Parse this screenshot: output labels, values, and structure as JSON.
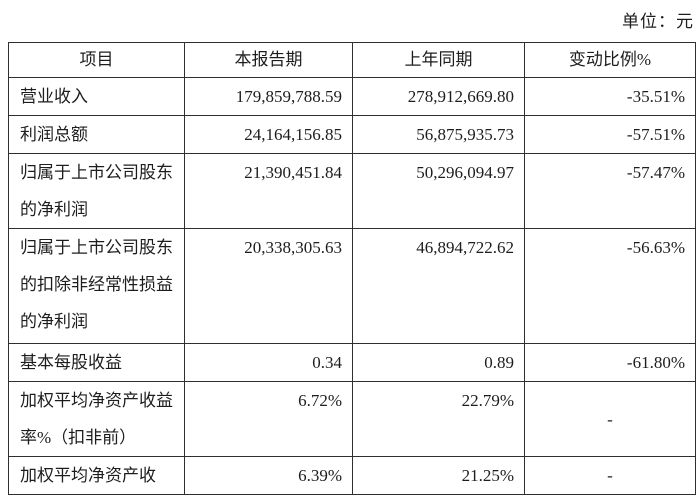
{
  "unit_label": "单位：元",
  "table": {
    "columns": [
      "项目",
      "本报告期",
      "上年同期",
      "变动比例%"
    ],
    "rows": [
      [
        "营业收入",
        "179,859,788.59",
        "278,912,669.80",
        "-35.51%"
      ],
      [
        "利润总额",
        "24,164,156.85",
        "56,875,935.73",
        "-57.51%"
      ],
      [
        "归属于上市公司股东的净利润",
        "21,390,451.84",
        "50,296,094.97",
        "-57.47%"
      ],
      [
        "归属于上市公司股东的扣除非经常性损益的净利润",
        "20,338,305.63",
        "46,894,722.62",
        "-56.63%"
      ],
      [
        "基本每股收益",
        "0.34",
        "0.89",
        "-61.80%"
      ],
      [
        "加权平均净资产收益率%（扣非前）",
        "6.72%",
        "22.79%",
        "-"
      ],
      [
        "加权平均净资产收",
        "6.39%",
        "21.25%",
        "-"
      ]
    ]
  },
  "colors": {
    "background": "#ffffff",
    "text": "#1d1d1d",
    "border": "#2f2f2f"
  }
}
